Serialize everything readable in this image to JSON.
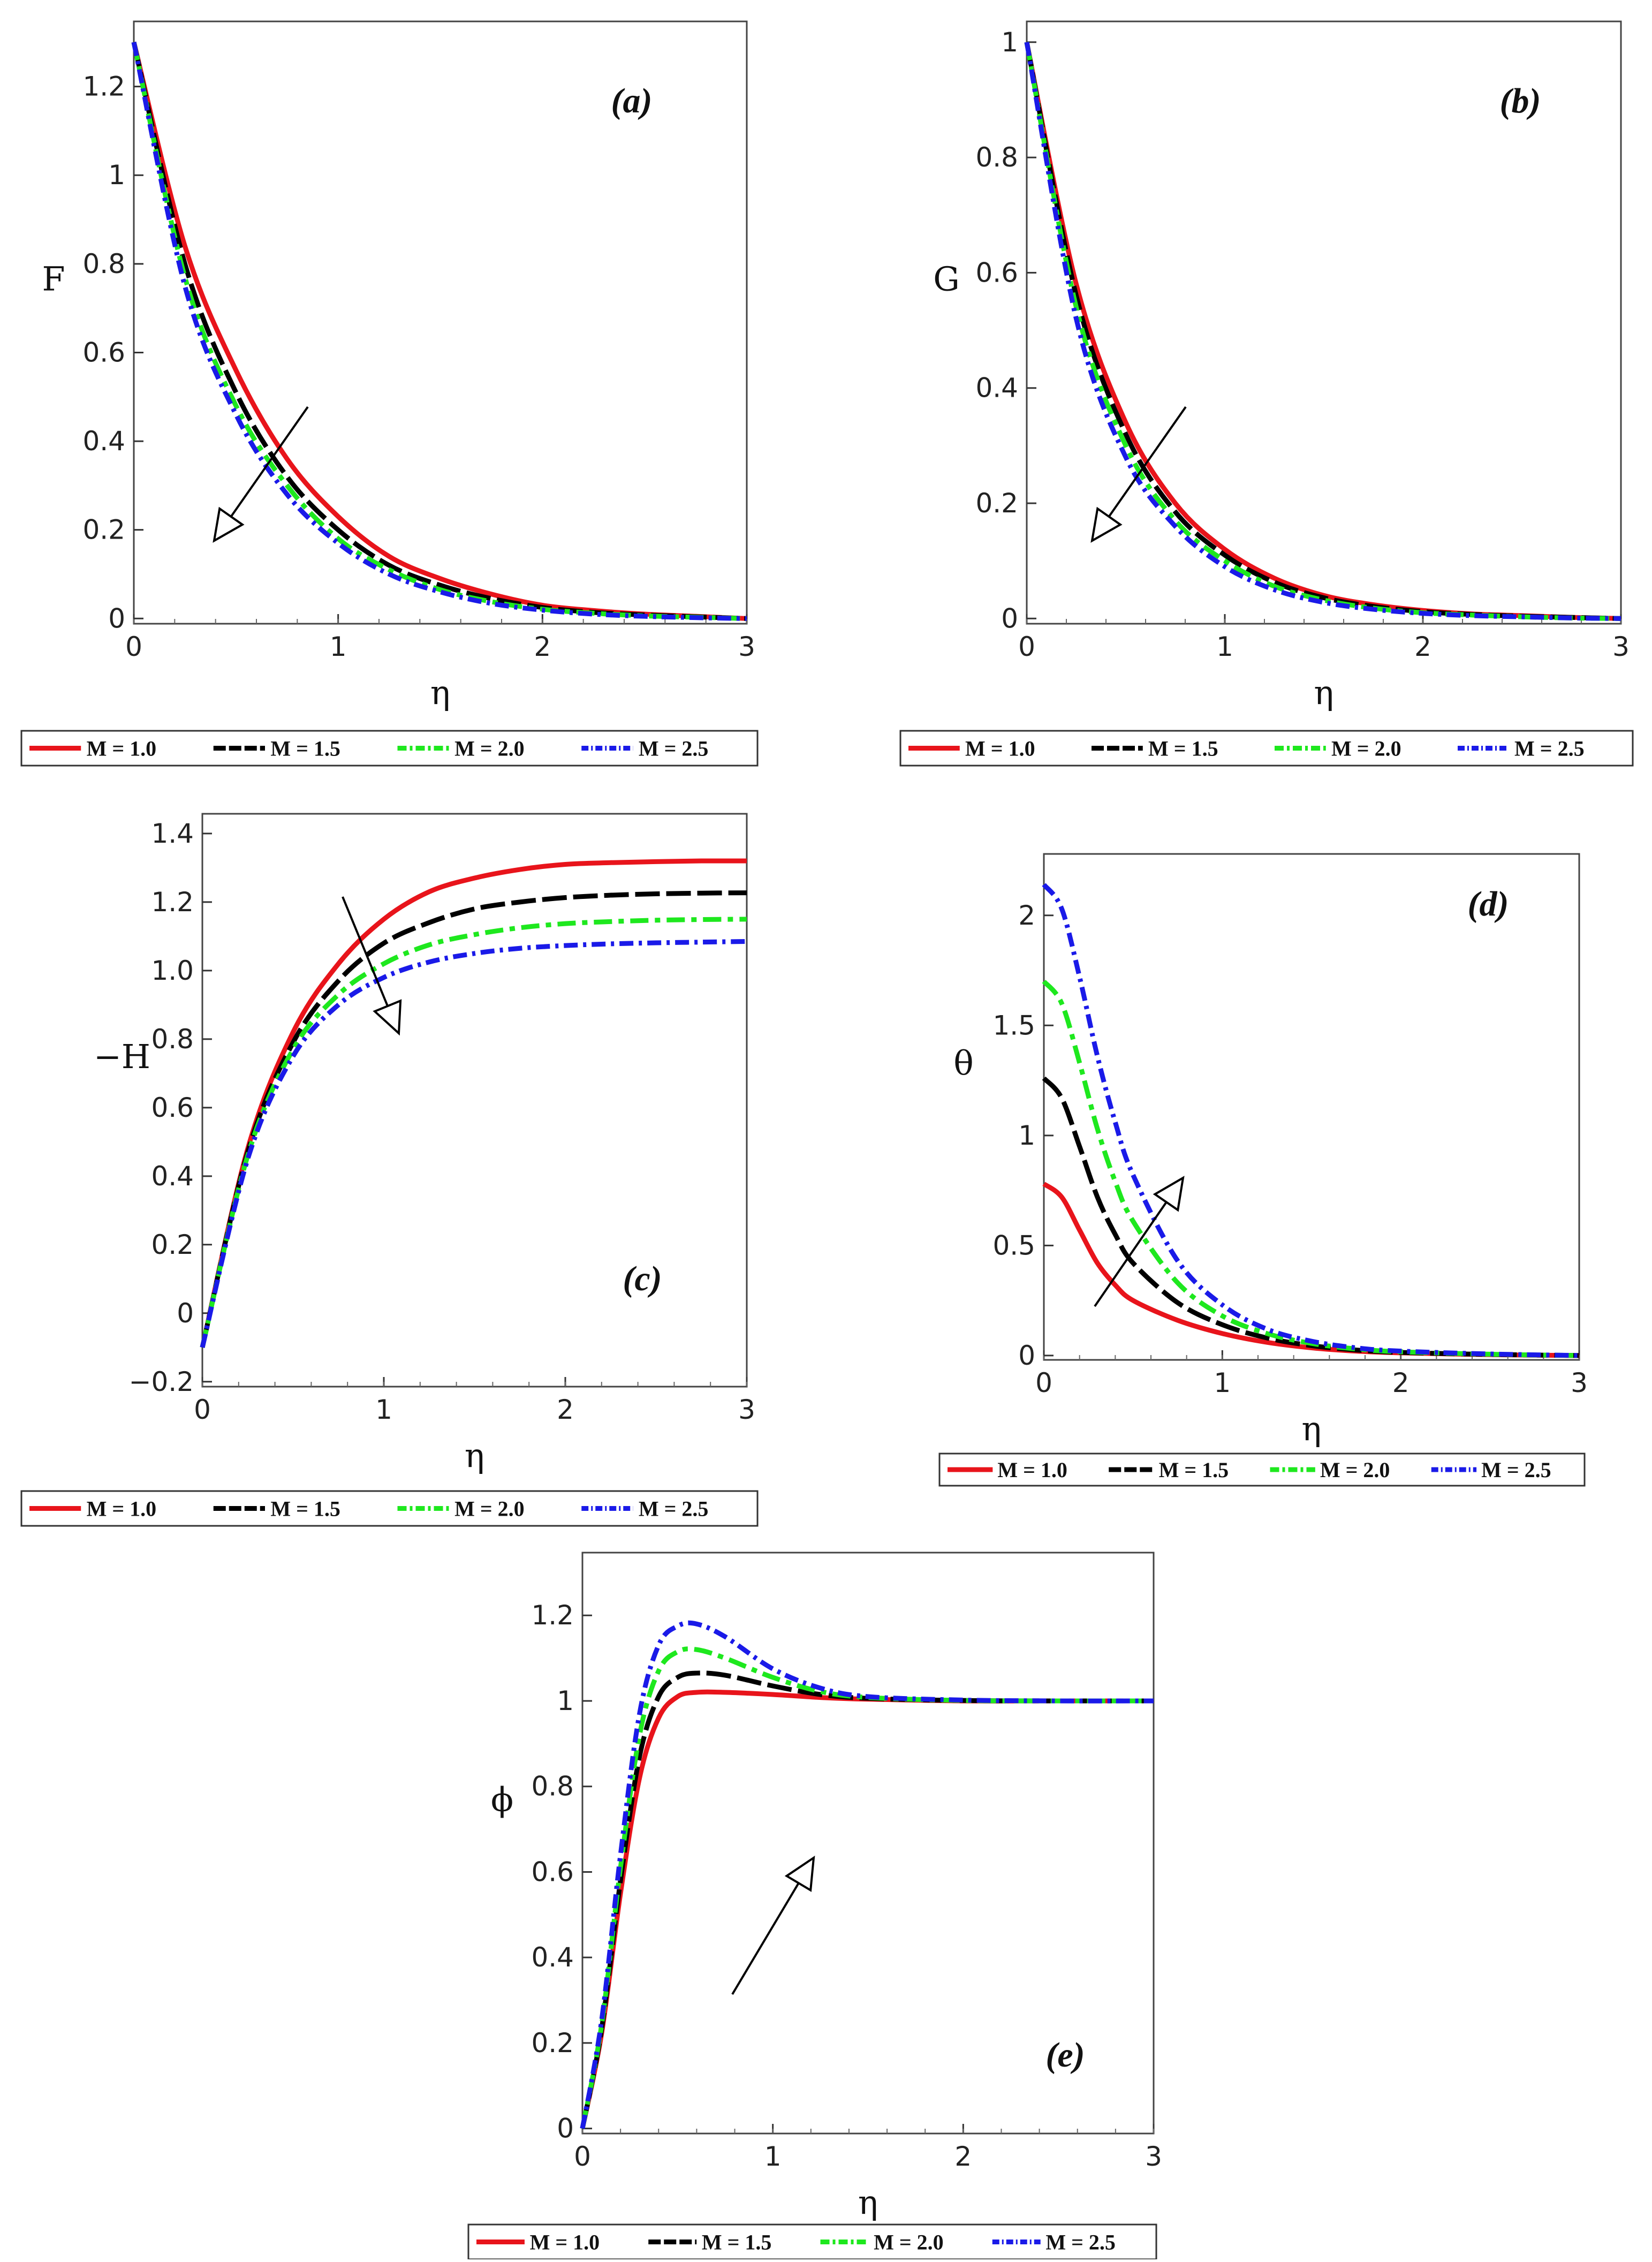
{
  "chart_data": [
    {
      "type": "line",
      "panel": "(a)",
      "xlabel": "η",
      "ylabel": "F",
      "xlim": [
        0,
        3
      ],
      "ylim": [
        0,
        1.3
      ],
      "xticks": [
        0,
        1,
        2,
        3
      ],
      "xtick_labels": [
        "0",
        "1",
        "2",
        "3"
      ],
      "yticks": [
        0,
        0.2,
        0.4,
        0.6,
        0.8,
        1.0,
        1.2
      ],
      "ytick_labels": [
        "0",
        "0.2",
        "0.4",
        "0.6",
        "0.8",
        "1",
        "1.2"
      ],
      "arrow": "down-left",
      "legend": [
        "M = 1.0",
        "M = 1.5",
        "M = 2.0",
        "M = 2.5"
      ],
      "x": [
        0,
        0.25,
        0.5,
        0.75,
        1.0,
        1.25,
        1.5,
        1.75,
        2.0,
        2.25,
        2.5,
        2.75,
        3.0
      ],
      "series": [
        {
          "name": "M = 1.0",
          "values": [
            1.3,
            0.84,
            0.56,
            0.36,
            0.23,
            0.14,
            0.09,
            0.055,
            0.03,
            0.018,
            0.01,
            0.005,
            0.0
          ]
        },
        {
          "name": "M = 1.5",
          "values": [
            1.3,
            0.8,
            0.51,
            0.32,
            0.2,
            0.12,
            0.075,
            0.045,
            0.025,
            0.014,
            0.008,
            0.004,
            0.0
          ]
        },
        {
          "name": "M = 2.0",
          "values": [
            1.3,
            0.77,
            0.48,
            0.3,
            0.18,
            0.11,
            0.065,
            0.038,
            0.021,
            0.012,
            0.006,
            0.003,
            0.0
          ]
        },
        {
          "name": "M = 2.5",
          "values": [
            1.3,
            0.75,
            0.46,
            0.28,
            0.17,
            0.1,
            0.06,
            0.034,
            0.019,
            0.01,
            0.005,
            0.002,
            0.0
          ]
        }
      ]
    },
    {
      "type": "line",
      "panel": "(b)",
      "xlabel": "η",
      "ylabel": "G",
      "xlim": [
        0,
        3
      ],
      "ylim": [
        0,
        1.0
      ],
      "xticks": [
        0,
        1,
        2,
        3
      ],
      "xtick_labels": [
        "0",
        "1",
        "2",
        "3"
      ],
      "yticks": [
        0,
        0.2,
        0.4,
        0.6,
        0.8,
        1.0
      ],
      "ytick_labels": [
        "0",
        "0.2",
        "0.4",
        "0.6",
        "0.8",
        "1"
      ],
      "arrow": "down-left",
      "legend": [
        "M = 1.0",
        "M = 1.5",
        "M = 2.0",
        "M = 2.5"
      ],
      "x": [
        0,
        0.25,
        0.5,
        0.75,
        1.0,
        1.25,
        1.5,
        1.75,
        2.0,
        2.25,
        2.5,
        2.75,
        3.0
      ],
      "series": [
        {
          "name": "M = 1.0",
          "values": [
            1.0,
            0.58,
            0.34,
            0.2,
            0.12,
            0.07,
            0.04,
            0.024,
            0.014,
            0.008,
            0.005,
            0.002,
            0.0
          ]
        },
        {
          "name": "M = 1.5",
          "values": [
            1.0,
            0.56,
            0.32,
            0.185,
            0.11,
            0.063,
            0.036,
            0.021,
            0.012,
            0.007,
            0.004,
            0.002,
            0.0
          ]
        },
        {
          "name": "M = 2.0",
          "values": [
            1.0,
            0.54,
            0.3,
            0.17,
            0.1,
            0.056,
            0.032,
            0.018,
            0.01,
            0.006,
            0.003,
            0.001,
            0.0
          ]
        },
        {
          "name": "M = 2.5",
          "values": [
            1.0,
            0.52,
            0.28,
            0.16,
            0.09,
            0.05,
            0.028,
            0.016,
            0.009,
            0.005,
            0.003,
            0.001,
            0.0
          ]
        }
      ]
    },
    {
      "type": "line",
      "panel": "(c)",
      "xlabel": "η",
      "ylabel": "−H",
      "xlim": [
        0,
        3
      ],
      "ylim": [
        -0.2,
        1.4
      ],
      "xticks": [
        0,
        1,
        2,
        3
      ],
      "xtick_labels": [
        "0",
        "1",
        "2",
        "3"
      ],
      "yticks": [
        -0.2,
        0,
        0.2,
        0.4,
        0.6,
        0.8,
        1.0,
        1.2,
        1.4
      ],
      "ytick_labels": [
        "−0.2",
        "0",
        "0.2",
        "0.4",
        "0.6",
        "0.8",
        "1.0",
        "1.2",
        "1.4"
      ],
      "arrow": "down-right",
      "legend": [
        "M = 1.0",
        "M = 1.5",
        "M = 2.0",
        "M = 2.5"
      ],
      "x": [
        0,
        0.25,
        0.5,
        0.75,
        1.0,
        1.25,
        1.5,
        1.75,
        2.0,
        2.25,
        2.5,
        2.75,
        3.0
      ],
      "series": [
        {
          "name": "M = 1.0",
          "values": [
            -0.1,
            0.48,
            0.82,
            1.02,
            1.15,
            1.23,
            1.27,
            1.295,
            1.31,
            1.315,
            1.318,
            1.32,
            1.32
          ]
        },
        {
          "name": "M = 1.5",
          "values": [
            -0.1,
            0.47,
            0.79,
            0.97,
            1.08,
            1.14,
            1.18,
            1.2,
            1.213,
            1.22,
            1.224,
            1.226,
            1.227
          ]
        },
        {
          "name": "M = 2.0",
          "values": [
            -0.1,
            0.46,
            0.77,
            0.93,
            1.02,
            1.075,
            1.105,
            1.125,
            1.137,
            1.143,
            1.147,
            1.149,
            1.15
          ]
        },
        {
          "name": "M = 2.5",
          "values": [
            -0.1,
            0.45,
            0.75,
            0.9,
            0.98,
            1.025,
            1.05,
            1.065,
            1.073,
            1.078,
            1.081,
            1.083,
            1.085
          ]
        }
      ]
    },
    {
      "type": "line",
      "panel": "(d)",
      "xlabel": "η",
      "ylabel": "θ",
      "xlim": [
        0,
        3
      ],
      "ylim": [
        0,
        2.2
      ],
      "xticks": [
        0,
        1,
        2,
        3
      ],
      "xtick_labels": [
        "0",
        "1",
        "2",
        "3"
      ],
      "yticks": [
        0,
        0.5,
        1.0,
        1.5,
        2.0
      ],
      "ytick_labels": [
        "0",
        "0.5",
        "1",
        "1.5",
        "2"
      ],
      "arrow": "up-right",
      "legend": [
        "M = 1.0",
        "M = 1.5",
        "M = 2.0",
        "M = 2.5"
      ],
      "x": [
        0,
        0.1,
        0.2,
        0.3,
        0.4,
        0.5,
        0.75,
        1.0,
        1.25,
        1.5,
        1.75,
        2.0,
        2.5,
        3.0
      ],
      "series": [
        {
          "name": "M = 1.0",
          "values": [
            0.78,
            0.72,
            0.57,
            0.42,
            0.32,
            0.25,
            0.16,
            0.1,
            0.06,
            0.035,
            0.02,
            0.012,
            0.004,
            0.0
          ]
        },
        {
          "name": "M = 1.5",
          "values": [
            1.26,
            1.17,
            0.95,
            0.72,
            0.55,
            0.42,
            0.24,
            0.14,
            0.08,
            0.045,
            0.025,
            0.014,
            0.005,
            0.0
          ]
        },
        {
          "name": "M = 2.0",
          "values": [
            1.7,
            1.6,
            1.33,
            1.03,
            0.79,
            0.61,
            0.33,
            0.18,
            0.1,
            0.055,
            0.03,
            0.017,
            0.006,
            0.0
          ]
        },
        {
          "name": "M = 2.5",
          "values": [
            2.14,
            2.03,
            1.72,
            1.36,
            1.06,
            0.82,
            0.43,
            0.23,
            0.12,
            0.065,
            0.035,
            0.02,
            0.007,
            0.0
          ]
        }
      ]
    },
    {
      "type": "line",
      "panel": "(e)",
      "xlabel": "η",
      "ylabel": "ϕ",
      "xlim": [
        0,
        3
      ],
      "ylim": [
        0,
        1.3
      ],
      "xticks": [
        0,
        1,
        2,
        3
      ],
      "xtick_labels": [
        "0",
        "1",
        "2",
        "3"
      ],
      "yticks": [
        0,
        0.2,
        0.4,
        0.6,
        0.8,
        1.0,
        1.2
      ],
      "ytick_labels": [
        "0",
        "0.2",
        "0.4",
        "0.6",
        "0.8",
        "1",
        "1.2"
      ],
      "arrow": "up-right",
      "legend": [
        "M = 1.0",
        "M = 1.5",
        "M = 2.0",
        "M = 2.5"
      ],
      "x": [
        0,
        0.1,
        0.2,
        0.3,
        0.4,
        0.5,
        0.6,
        0.75,
        1.0,
        1.25,
        1.5,
        2.0,
        2.5,
        3.0
      ],
      "series": [
        {
          "name": "M = 1.0",
          "values": [
            0.0,
            0.22,
            0.55,
            0.82,
            0.96,
            1.01,
            1.02,
            1.02,
            1.015,
            1.008,
            1.004,
            1.0,
            1.0,
            1.0
          ]
        },
        {
          "name": "M = 1.5",
          "values": [
            0.0,
            0.23,
            0.58,
            0.87,
            1.01,
            1.055,
            1.065,
            1.06,
            1.035,
            1.015,
            1.006,
            1.001,
            1.0,
            1.0
          ]
        },
        {
          "name": "M = 2.0",
          "values": [
            0.0,
            0.24,
            0.61,
            0.92,
            1.07,
            1.115,
            1.12,
            1.1,
            1.055,
            1.022,
            1.008,
            1.001,
            1.0,
            1.0
          ]
        },
        {
          "name": "M = 2.5",
          "values": [
            0.0,
            0.25,
            0.64,
            0.97,
            1.13,
            1.175,
            1.18,
            1.15,
            1.075,
            1.03,
            1.01,
            1.002,
            1.0,
            1.0
          ]
        }
      ]
    }
  ],
  "series_colors": [
    "#e8141b",
    "#000000",
    "#1ee81e",
    "#1a1ae8"
  ]
}
